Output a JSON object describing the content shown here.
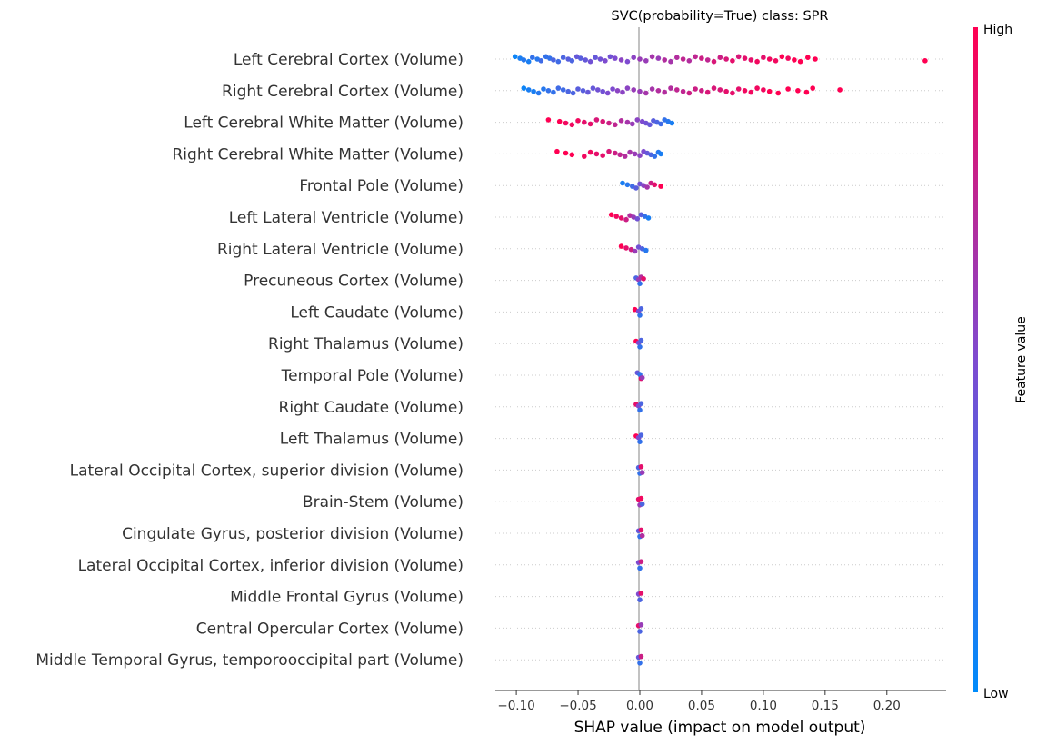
{
  "chart_data": {
    "type": "scatter",
    "subtype": "shap-beeswarm",
    "title": "SVC(probability=True) class: SPR",
    "xlabel": "SHAP value (impact on model output)",
    "xlim": [
      -0.117,
      0.248
    ],
    "xticks": [
      -0.1,
      -0.05,
      0.0,
      0.05,
      0.1,
      0.15,
      0.2
    ],
    "xtick_labels": [
      "−0.10",
      "−0.05",
      "0.00",
      "0.05",
      "0.10",
      "0.15",
      "0.20"
    ],
    "grid": "horizontal dotted row guides",
    "colorbar": {
      "label": "Feature value",
      "high_label": "High",
      "low_label": "Low",
      "low_color": "#008bfb",
      "high_color": "#ff0052"
    },
    "features": [
      {
        "name": "Left Cerebral Cortex  (Volume)",
        "points": [
          [
            -0.101,
            0.05
          ],
          [
            -0.097,
            0.1
          ],
          [
            -0.094,
            0.15
          ],
          [
            -0.09,
            0.1
          ],
          [
            -0.087,
            0.2
          ],
          [
            -0.083,
            0.15
          ],
          [
            -0.08,
            0.25
          ],
          [
            -0.076,
            0.2
          ],
          [
            -0.073,
            0.2
          ],
          [
            -0.07,
            0.3
          ],
          [
            -0.066,
            0.25
          ],
          [
            -0.062,
            0.3
          ],
          [
            -0.058,
            0.35
          ],
          [
            -0.055,
            0.3
          ],
          [
            -0.051,
            0.4
          ],
          [
            -0.048,
            0.35
          ],
          [
            -0.044,
            0.4
          ],
          [
            -0.04,
            0.45
          ],
          [
            -0.036,
            0.4
          ],
          [
            -0.032,
            0.45
          ],
          [
            -0.028,
            0.5
          ],
          [
            -0.024,
            0.45
          ],
          [
            -0.02,
            0.5
          ],
          [
            -0.015,
            0.55
          ],
          [
            -0.01,
            0.5
          ],
          [
            -0.005,
            0.55
          ],
          [
            0.0,
            0.6
          ],
          [
            0.005,
            0.6
          ],
          [
            0.01,
            0.65
          ],
          [
            0.015,
            0.6
          ],
          [
            0.02,
            0.7
          ],
          [
            0.025,
            0.65
          ],
          [
            0.03,
            0.7
          ],
          [
            0.035,
            0.75
          ],
          [
            0.04,
            0.7
          ],
          [
            0.045,
            0.75
          ],
          [
            0.05,
            0.8
          ],
          [
            0.055,
            0.75
          ],
          [
            0.06,
            0.85
          ],
          [
            0.065,
            0.8
          ],
          [
            0.07,
            0.85
          ],
          [
            0.075,
            0.9
          ],
          [
            0.08,
            0.85
          ],
          [
            0.085,
            0.9
          ],
          [
            0.09,
            0.9
          ],
          [
            0.095,
            0.95
          ],
          [
            0.1,
            0.9
          ],
          [
            0.105,
            0.95
          ],
          [
            0.11,
            0.95
          ],
          [
            0.115,
            1.0
          ],
          [
            0.12,
            0.95
          ],
          [
            0.125,
            1.0
          ],
          [
            0.13,
            1.0
          ],
          [
            0.136,
            1.0
          ],
          [
            0.142,
            1.0
          ],
          [
            0.231,
            1.0
          ]
        ]
      },
      {
        "name": "Right Cerebral Cortex (Volume)",
        "points": [
          [
            -0.094,
            0.05
          ],
          [
            -0.09,
            0.1
          ],
          [
            -0.086,
            0.1
          ],
          [
            -0.082,
            0.15
          ],
          [
            -0.078,
            0.15
          ],
          [
            -0.074,
            0.2
          ],
          [
            -0.07,
            0.2
          ],
          [
            -0.066,
            0.25
          ],
          [
            -0.062,
            0.25
          ],
          [
            -0.058,
            0.3
          ],
          [
            -0.054,
            0.3
          ],
          [
            -0.05,
            0.35
          ],
          [
            -0.046,
            0.35
          ],
          [
            -0.042,
            0.4
          ],
          [
            -0.038,
            0.4
          ],
          [
            -0.034,
            0.45
          ],
          [
            -0.03,
            0.45
          ],
          [
            -0.026,
            0.5
          ],
          [
            -0.022,
            0.5
          ],
          [
            -0.018,
            0.55
          ],
          [
            -0.014,
            0.55
          ],
          [
            -0.01,
            0.55
          ],
          [
            -0.005,
            0.6
          ],
          [
            0.0,
            0.6
          ],
          [
            0.005,
            0.65
          ],
          [
            0.01,
            0.65
          ],
          [
            0.015,
            0.7
          ],
          [
            0.02,
            0.7
          ],
          [
            0.025,
            0.7
          ],
          [
            0.03,
            0.75
          ],
          [
            0.035,
            0.75
          ],
          [
            0.04,
            0.8
          ],
          [
            0.045,
            0.8
          ],
          [
            0.05,
            0.8
          ],
          [
            0.055,
            0.85
          ],
          [
            0.06,
            0.85
          ],
          [
            0.065,
            0.85
          ],
          [
            0.07,
            0.9
          ],
          [
            0.075,
            0.9
          ],
          [
            0.08,
            0.9
          ],
          [
            0.085,
            0.95
          ],
          [
            0.09,
            0.95
          ],
          [
            0.095,
            0.95
          ],
          [
            0.1,
            0.95
          ],
          [
            0.105,
            1.0
          ],
          [
            0.112,
            1.0
          ],
          [
            0.12,
            1.0
          ],
          [
            0.128,
            1.0
          ],
          [
            0.135,
            1.0
          ],
          [
            0.14,
            1.0
          ],
          [
            0.162,
            1.0
          ]
        ]
      },
      {
        "name": "Left Cerebral White Matter (Volume)",
        "points": [
          [
            -0.074,
            1.0
          ],
          [
            -0.065,
            1.0
          ],
          [
            -0.06,
            0.95
          ],
          [
            -0.055,
            0.95
          ],
          [
            -0.05,
            0.95
          ],
          [
            -0.045,
            0.9
          ],
          [
            -0.04,
            0.9
          ],
          [
            -0.035,
            0.85
          ],
          [
            -0.03,
            0.85
          ],
          [
            -0.025,
            0.8
          ],
          [
            -0.02,
            0.75
          ],
          [
            -0.015,
            0.7
          ],
          [
            -0.01,
            0.65
          ],
          [
            -0.006,
            0.6
          ],
          [
            -0.002,
            0.55
          ],
          [
            0.002,
            0.5
          ],
          [
            0.005,
            0.45
          ],
          [
            0.008,
            0.4
          ],
          [
            0.011,
            0.35
          ],
          [
            0.014,
            0.3
          ],
          [
            0.017,
            0.25
          ],
          [
            0.02,
            0.2
          ],
          [
            0.023,
            0.15
          ],
          [
            0.026,
            0.1
          ]
        ]
      },
      {
        "name": "Right Cerebral White Matter (Volume)",
        "points": [
          [
            -0.067,
            1.0
          ],
          [
            -0.06,
            1.0
          ],
          [
            -0.055,
            1.0
          ],
          [
            -0.045,
            0.95
          ],
          [
            -0.04,
            0.95
          ],
          [
            -0.035,
            0.9
          ],
          [
            -0.03,
            0.9
          ],
          [
            -0.025,
            0.85
          ],
          [
            -0.02,
            0.8
          ],
          [
            -0.016,
            0.75
          ],
          [
            -0.012,
            0.7
          ],
          [
            -0.008,
            0.65
          ],
          [
            -0.004,
            0.6
          ],
          [
            0.0,
            0.55
          ],
          [
            0.003,
            0.5
          ],
          [
            0.006,
            0.4
          ],
          [
            0.009,
            0.3
          ],
          [
            0.012,
            0.2
          ],
          [
            0.015,
            0.15
          ],
          [
            0.017,
            0.1
          ]
        ]
      },
      {
        "name": "Frontal Pole (Volume)",
        "points": [
          [
            -0.014,
            0.1
          ],
          [
            -0.01,
            0.15
          ],
          [
            -0.006,
            0.25
          ],
          [
            -0.003,
            0.35
          ],
          [
            0.0,
            0.45
          ],
          [
            0.003,
            0.55
          ],
          [
            0.006,
            0.65
          ],
          [
            0.009,
            0.8
          ],
          [
            0.012,
            0.9
          ],
          [
            0.017,
            1.0
          ]
        ]
      },
      {
        "name": "Left Lateral Ventricle (Volume)",
        "points": [
          [
            -0.023,
            1.0
          ],
          [
            -0.019,
            0.95
          ],
          [
            -0.015,
            0.9
          ],
          [
            -0.011,
            0.8
          ],
          [
            -0.008,
            0.7
          ],
          [
            -0.005,
            0.6
          ],
          [
            -0.002,
            0.45
          ],
          [
            0.001,
            0.35
          ],
          [
            0.004,
            0.2
          ],
          [
            0.007,
            0.1
          ]
        ]
      },
      {
        "name": "Right Lateral Ventricle (Volume)",
        "points": [
          [
            -0.015,
            1.0
          ],
          [
            -0.011,
            0.9
          ],
          [
            -0.007,
            0.8
          ],
          [
            -0.004,
            0.6
          ],
          [
            -0.001,
            0.45
          ],
          [
            0.002,
            0.3
          ],
          [
            0.005,
            0.15
          ]
        ]
      },
      {
        "name": "Precuneous Cortex (Volume)",
        "points": [
          [
            -0.003,
            0.3
          ],
          [
            -0.001,
            0.6
          ],
          [
            0.0,
            0.2
          ],
          [
            0.001,
            0.7
          ],
          [
            0.003,
            0.9
          ]
        ]
      },
      {
        "name": "Left Caudate (Volume)",
        "points": [
          [
            -0.004,
            1.0
          ],
          [
            -0.001,
            0.5
          ],
          [
            0.0,
            0.2
          ],
          [
            0.001,
            0.3
          ]
        ]
      },
      {
        "name": "Right Thalamus (Volume)",
        "points": [
          [
            -0.003,
            1.0
          ],
          [
            -0.001,
            0.5
          ],
          [
            0.0,
            0.2
          ],
          [
            0.001,
            0.3
          ]
        ]
      },
      {
        "name": "Temporal Pole (Volume)",
        "points": [
          [
            -0.002,
            0.4
          ],
          [
            0.0,
            0.2
          ],
          [
            0.001,
            0.9
          ],
          [
            0.002,
            0.6
          ]
        ]
      },
      {
        "name": "Right Caudate (Volume)",
        "points": [
          [
            -0.003,
            0.9
          ],
          [
            -0.001,
            0.5
          ],
          [
            0.0,
            0.2
          ],
          [
            0.001,
            0.3
          ]
        ]
      },
      {
        "name": "Left Thalamus (Volume)",
        "points": [
          [
            -0.003,
            1.0
          ],
          [
            -0.001,
            0.5
          ],
          [
            0.0,
            0.2
          ],
          [
            0.001,
            0.3
          ]
        ]
      },
      {
        "name": "Lateral Occipital Cortex, superior division (Volume)",
        "points": [
          [
            -0.001,
            0.3
          ],
          [
            0.0,
            0.2
          ],
          [
            0.001,
            0.9
          ],
          [
            0.002,
            0.6
          ]
        ]
      },
      {
        "name": "Brain-Stem (Volume)",
        "points": [
          [
            -0.001,
            0.9
          ],
          [
            0.0,
            0.6
          ],
          [
            0.001,
            0.95
          ],
          [
            0.002,
            0.3
          ]
        ]
      },
      {
        "name": "Cingulate Gyrus, posterior division (Volume)",
        "points": [
          [
            -0.001,
            0.4
          ],
          [
            0.0,
            0.2
          ],
          [
            0.001,
            0.9
          ],
          [
            0.002,
            0.7
          ]
        ]
      },
      {
        "name": "Lateral Occipital Cortex, inferior division (Volume)",
        "points": [
          [
            -0.001,
            0.5
          ],
          [
            0.0,
            0.2
          ],
          [
            0.001,
            0.8
          ]
        ]
      },
      {
        "name": "Middle Frontal Gyrus (Volume)",
        "points": [
          [
            -0.001,
            0.5
          ],
          [
            0.0,
            0.3
          ],
          [
            0.001,
            0.9
          ]
        ]
      },
      {
        "name": "Central Opercular Cortex (Volume)",
        "points": [
          [
            -0.001,
            0.9
          ],
          [
            0.0,
            0.3
          ],
          [
            0.001,
            0.6
          ]
        ]
      },
      {
        "name": "Middle Temporal Gyrus, temporooccipital part (Volume)",
        "points": [
          [
            -0.001,
            0.4
          ],
          [
            0.0,
            0.2
          ],
          [
            0.001,
            0.8
          ]
        ]
      }
    ]
  }
}
